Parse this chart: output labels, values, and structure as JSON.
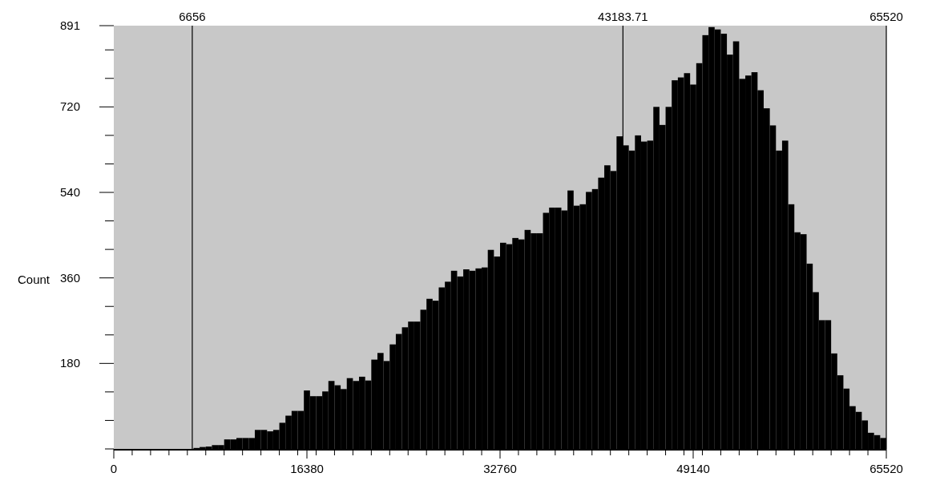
{
  "chart_data": {
    "type": "histogram",
    "ylabel": "Count",
    "color": "#000000",
    "bins": [
      0,
      520,
      1040,
      1560,
      2080,
      2600,
      3120,
      3640,
      4160,
      4680,
      5200,
      5720,
      6240,
      6760,
      7280,
      7800,
      8320,
      8840,
      9360,
      9880,
      10400,
      10920,
      11440,
      11960,
      12480,
      13000,
      13520,
      14040,
      14560,
      15080,
      15600,
      16120,
      16640,
      17160,
      17680,
      18200,
      18720,
      19240,
      19760,
      20280,
      20800,
      21320,
      21840,
      22360,
      22880,
      23400,
      23920,
      24440,
      24960,
      25480,
      26000,
      26520,
      27040,
      27560,
      28080,
      28600,
      29120,
      29640,
      30160,
      30680,
      31200,
      31720,
      32240,
      32760,
      33280,
      33800,
      34320,
      34840,
      35360,
      35880,
      36400,
      36920,
      37440,
      37960,
      38480,
      39000,
      39520,
      40040,
      40560,
      41080,
      41600,
      42120,
      42640,
      43160,
      43680,
      44200,
      44720,
      45240,
      45760,
      46280,
      46800,
      47320,
      47840,
      48360,
      48880,
      49400,
      49920,
      50440,
      50960,
      51480,
      52000,
      52520,
      53040,
      53560,
      54080,
      54600,
      55120,
      55640,
      56160,
      56680,
      57200,
      57720,
      58240,
      58760,
      59280,
      59800,
      60320,
      60840,
      61360,
      61880,
      62400,
      62920,
      63440,
      63960,
      64480,
      65000,
      65520
    ],
    "values": [
      0,
      0,
      0,
      0,
      0,
      0,
      0,
      0,
      0,
      0,
      0,
      0,
      0,
      2,
      4,
      5,
      8,
      8,
      20,
      20,
      23,
      23,
      23,
      40,
      40,
      37,
      40,
      55,
      70,
      80,
      80,
      123,
      111,
      111,
      121,
      143,
      134,
      126,
      149,
      143,
      152,
      144,
      188,
      202,
      185,
      220,
      242,
      256,
      268,
      268,
      293,
      316,
      312,
      340,
      352,
      375,
      363,
      378,
      375,
      380,
      382,
      419,
      405,
      434,
      431,
      444,
      441,
      461,
      454,
      454,
      497,
      508,
      508,
      502,
      544,
      512,
      515,
      541,
      547,
      571,
      597,
      585,
      658,
      639,
      628,
      660,
      647,
      649,
      720,
      682,
      720,
      776,
      782,
      791,
      767,
      812,
      871,
      888,
      883,
      874,
      830,
      858,
      779,
      786,
      793,
      755,
      717,
      681,
      628,
      649,
      515,
      456,
      452,
      390,
      330,
      271,
      271,
      201,
      155,
      127,
      90,
      78,
      60,
      34,
      29,
      23
    ],
    "xlim": [
      0,
      65520
    ],
    "ylim": [
      0,
      891
    ],
    "xticks": [
      0,
      {
        "value": 1560,
        "label": null
      },
      {
        "value": 3120,
        "label": null
      },
      {
        "value": 4680,
        "label": null
      },
      {
        "value": 6240,
        "label": null
      },
      {
        "value": 7800,
        "label": null
      },
      {
        "value": 9360,
        "label": null
      },
      {
        "value": 10920,
        "label": null
      },
      {
        "value": 12480,
        "label": null
      },
      {
        "value": 14040,
        "label": null
      },
      {
        "value": 15600,
        "label": null
      },
      16380,
      {
        "value": 17160,
        "label": null
      },
      {
        "value": 18720,
        "label": null
      },
      {
        "value": 20280,
        "label": null
      },
      {
        "value": 21840,
        "label": null
      },
      {
        "value": 23400,
        "label": null
      },
      {
        "value": 24960,
        "label": null
      },
      {
        "value": 26520,
        "label": null
      },
      {
        "value": 28080,
        "label": null
      },
      {
        "value": 29640,
        "label": null
      },
      {
        "value": 31200,
        "label": null
      },
      32760,
      {
        "value": 34320,
        "label": null
      },
      {
        "value": 35880,
        "label": null
      },
      {
        "value": 37440,
        "label": null
      },
      {
        "value": 39000,
        "label": null
      },
      {
        "value": 40560,
        "label": null
      },
      {
        "value": 42120,
        "label": null
      },
      {
        "value": 43680,
        "label": null
      },
      {
        "value": 45240,
        "label": null
      },
      {
        "value": 46800,
        "label": null
      },
      {
        "value": 48360,
        "label": null
      },
      49140,
      {
        "value": 49920,
        "label": null
      },
      {
        "value": 51480,
        "label": null
      },
      {
        "value": 53040,
        "label": null
      },
      {
        "value": 54600,
        "label": null
      },
      {
        "value": 56160,
        "label": null
      },
      {
        "value": 57720,
        "label": null
      },
      {
        "value": 59280,
        "label": null
      },
      {
        "value": 60840,
        "label": null
      },
      {
        "value": 62400,
        "label": null
      },
      {
        "value": 63960,
        "label": null
      },
      65520
    ],
    "yticks": [
      {
        "value": 0,
        "label": null
      },
      {
        "value": 60,
        "label": null
      },
      {
        "value": 120,
        "label": null
      },
      180,
      {
        "value": 240,
        "label": null
      },
      {
        "value": 300,
        "label": null
      },
      360,
      {
        "value": 420,
        "label": null
      },
      {
        "value": 480,
        "label": null
      },
      540,
      {
        "value": 600,
        "label": null
      },
      {
        "value": 660,
        "label": null
      },
      720,
      {
        "value": 780,
        "label": null
      },
      {
        "value": 840,
        "label": null
      },
      891
    ],
    "ref_lines": [
      {
        "axis": "x",
        "value": 6656,
        "label": "6656",
        "color": "#000000"
      },
      {
        "axis": "x",
        "value": 43183.71,
        "label": "43183.71",
        "color": "#000000"
      },
      {
        "axis": "x",
        "value": 65520,
        "label": "65520",
        "color": "#000000"
      }
    ],
    "grid": false
  }
}
